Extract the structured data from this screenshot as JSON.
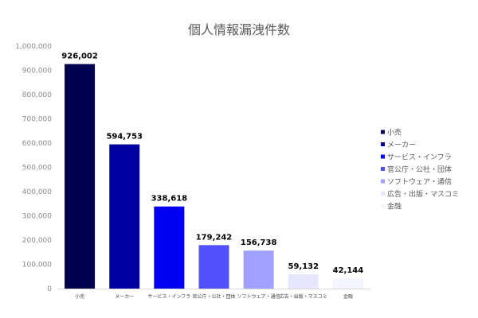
{
  "chart_data": {
    "type": "bar",
    "title": "個人情報漏洩件数",
    "xlabel": "",
    "ylabel": "",
    "ylim": [
      0,
      1000000
    ],
    "ytick_values": [
      0,
      100000,
      200000,
      300000,
      400000,
      500000,
      600000,
      700000,
      800000,
      900000,
      1000000
    ],
    "ytick_labels": [
      "0",
      "100,000",
      "200,000",
      "300,000",
      "400,000",
      "500,000",
      "600,000",
      "700,000",
      "800,000",
      "900,000",
      "1,000,000"
    ],
    "grid": false,
    "legend_position": "right",
    "categories": [
      "小売",
      "メーカー",
      "サービス・インフラ",
      "官公庁・公社・団体",
      "ソフトウェア・通信",
      "広告・出版・マスコミ",
      "金融"
    ],
    "values": [
      926002,
      594753,
      338618,
      179242,
      156738,
      59132,
      42144
    ],
    "data_labels": [
      "926,002",
      "594,753",
      "338,618",
      "179,242",
      "156,738",
      "59,132",
      "42,144"
    ],
    "colors": [
      "#000050",
      "#0000A0",
      "#0000F0",
      "#5050FF",
      "#A0A0FF",
      "#E6E6FF",
      "#F5F5FF"
    ]
  }
}
